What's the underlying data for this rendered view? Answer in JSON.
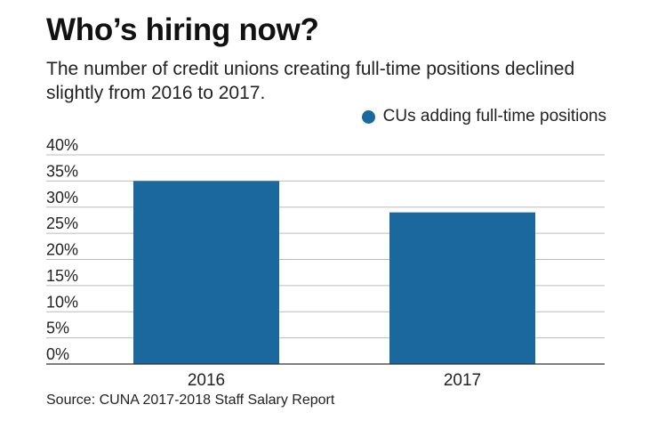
{
  "title": "Who’s hiring now?",
  "subtitle": "The number of credit unions creating full-time positions declined slightly from 2016 to 2017.",
  "source": "Source: CUNA 2017-2018 Staff Salary Report",
  "colors": {
    "bar": "#1a689e",
    "grid": "#bbbbbb",
    "axis": "#333333"
  },
  "chart_data": {
    "type": "bar",
    "title": "Who’s hiring now?",
    "subtitle": "The number of credit unions creating full-time positions declined slightly from 2016 to 2017.",
    "categories": [
      "2016",
      "2017"
    ],
    "series": [
      {
        "name": "CUs adding full-time positions",
        "values": [
          35,
          29
        ]
      }
    ],
    "y_ticks": [
      "0%",
      "5%",
      "10%",
      "15%",
      "20%",
      "25%",
      "30%",
      "35%",
      "40%"
    ],
    "ylim": [
      0,
      40
    ],
    "y_unit": "%",
    "grid": true,
    "legend": "top-right"
  }
}
